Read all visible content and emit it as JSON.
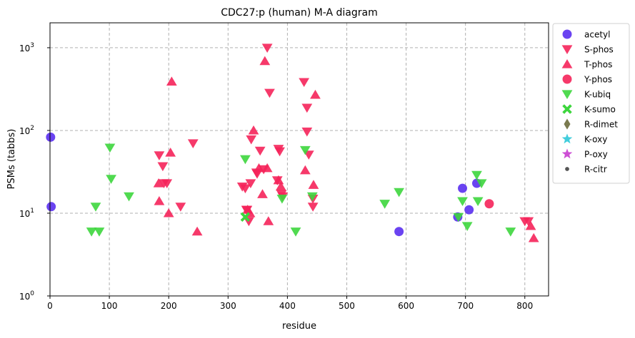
{
  "chart_data": {
    "type": "scatter",
    "title": "CDC27:p (human) M-A diagram",
    "xlabel": "residue",
    "ylabel": "PSMs (tabbs)",
    "xlim": [
      0,
      840
    ],
    "ylim": [
      1,
      2000
    ],
    "yscale": "log",
    "grid": true,
    "legend_position": "outside-right",
    "x_ticks": [
      0,
      100,
      200,
      300,
      400,
      500,
      600,
      700,
      800
    ],
    "y_ticks": [
      {
        "value": 1,
        "base": "10",
        "exp": "0"
      },
      {
        "value": 10,
        "base": "10",
        "exp": "1"
      },
      {
        "value": 100,
        "base": "10",
        "exp": "2"
      },
      {
        "value": 1000,
        "base": "10",
        "exp": "3"
      }
    ],
    "series": [
      {
        "name": "acetyl",
        "marker": "circle",
        "color": "#5a2ff0",
        "points": [
          [
            1,
            83
          ],
          [
            2,
            12
          ],
          [
            588,
            6
          ],
          [
            687,
            9
          ],
          [
            695,
            20
          ],
          [
            706,
            11
          ],
          [
            719,
            23
          ]
        ]
      },
      {
        "name": "S-phos",
        "marker": "triangle-down",
        "color": "#f5245a",
        "points": [
          [
            184,
            50
          ],
          [
            190,
            37
          ],
          [
            192,
            23
          ],
          [
            197,
            23
          ],
          [
            241,
            70
          ],
          [
            220,
            12
          ],
          [
            324,
            21
          ],
          [
            329,
            20
          ],
          [
            331,
            11
          ],
          [
            332,
            11
          ],
          [
            335,
            8
          ],
          [
            338,
            23
          ],
          [
            339,
            78
          ],
          [
            348,
            31
          ],
          [
            349,
            30
          ],
          [
            354,
            57
          ],
          [
            360,
            34
          ],
          [
            366,
            1000
          ],
          [
            370,
            285
          ],
          [
            383,
            25
          ],
          [
            385,
            60
          ],
          [
            387,
            56
          ],
          [
            390,
            17
          ],
          [
            392,
            16
          ],
          [
            428,
            385
          ],
          [
            433,
            188
          ],
          [
            433,
            97
          ],
          [
            436,
            51
          ],
          [
            443,
            15
          ],
          [
            443,
            12
          ],
          [
            800,
            8
          ],
          [
            806,
            8
          ]
        ]
      },
      {
        "name": "T-phos",
        "marker": "triangle-up",
        "color": "#f5245a",
        "points": [
          [
            183,
            23
          ],
          [
            184,
            14
          ],
          [
            200,
            10
          ],
          [
            203,
            54
          ],
          [
            205,
            390
          ],
          [
            248,
            6
          ],
          [
            333,
            11
          ],
          [
            337,
            10
          ],
          [
            343,
            100
          ],
          [
            352,
            35
          ],
          [
            358,
            17
          ],
          [
            362,
            690
          ],
          [
            366,
            35
          ],
          [
            368,
            8
          ],
          [
            385,
            25
          ],
          [
            389,
            21
          ],
          [
            430,
            33
          ],
          [
            444,
            22
          ],
          [
            447,
            270
          ],
          [
            810,
            7
          ],
          [
            815,
            5
          ]
        ]
      },
      {
        "name": "Y-phos",
        "marker": "circle",
        "color": "#f5245a",
        "points": [
          [
            740,
            13
          ]
        ]
      },
      {
        "name": "K-ubiq",
        "marker": "triangle-down",
        "color": "#3dd63d",
        "points": [
          [
            70,
            6
          ],
          [
            77,
            12
          ],
          [
            83,
            6
          ],
          [
            101,
            62
          ],
          [
            103,
            26
          ],
          [
            133,
            16
          ],
          [
            329,
            45
          ],
          [
            391,
            15
          ],
          [
            414,
            6
          ],
          [
            430,
            58
          ],
          [
            442,
            16
          ],
          [
            564,
            13
          ],
          [
            588,
            18
          ],
          [
            688,
            9
          ],
          [
            695,
            14
          ],
          [
            703,
            7
          ],
          [
            719,
            29
          ],
          [
            721,
            14
          ],
          [
            727,
            23
          ],
          [
            776,
            6
          ]
        ]
      },
      {
        "name": "K-sumo",
        "marker": "x",
        "color": "#3dd63d",
        "points": [
          [
            329,
            9
          ]
        ]
      },
      {
        "name": "R-dimet",
        "marker": "diamond",
        "color": "#6b6b3c",
        "points": []
      },
      {
        "name": "K-oxy",
        "marker": "star",
        "color": "#2ec8d8",
        "points": []
      },
      {
        "name": "P-oxy",
        "marker": "star",
        "color": "#c83ccf",
        "points": []
      },
      {
        "name": "R-citr",
        "marker": "dot",
        "color": "#555555",
        "points": []
      }
    ]
  }
}
